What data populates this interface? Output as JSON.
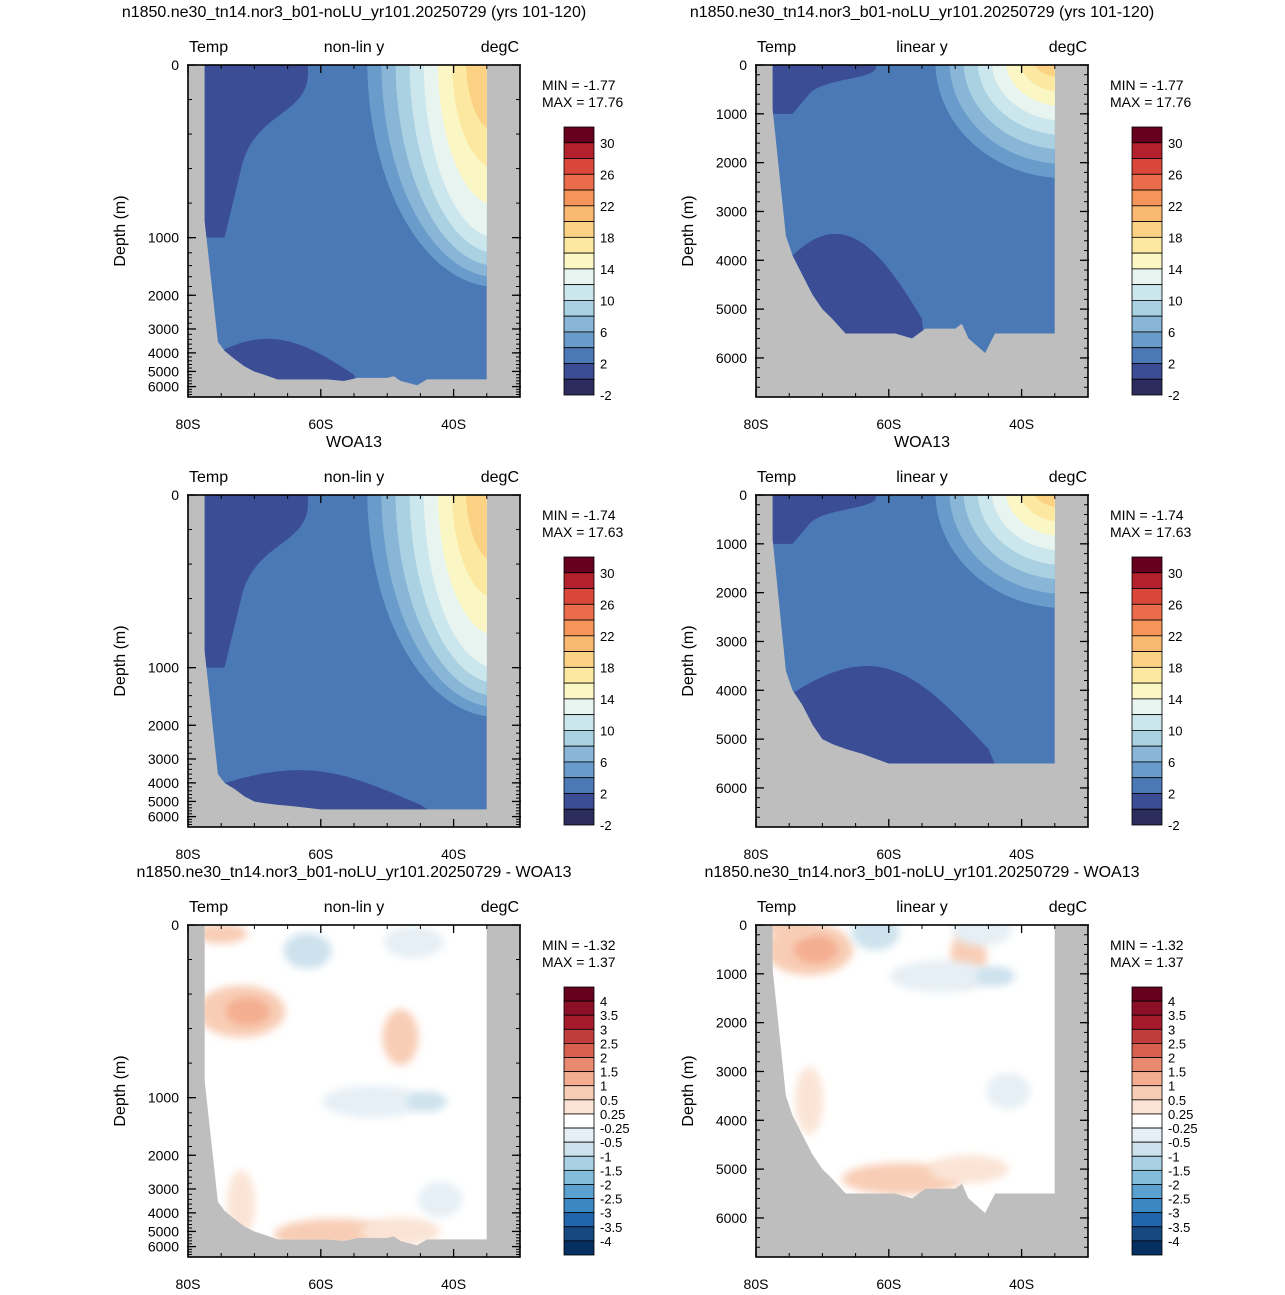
{
  "chart_data": [
    {
      "type": "heatmap",
      "title": "n1850.ne30_tn14.nor3_b01-noLU_yr101.20250729 (yrs 101-120)",
      "left_label": "Temp",
      "center_label": "non-lin y",
      "right_label": "degC",
      "xlabel": "",
      "ylabel": "Depth (m)",
      "x_ticks": [
        "80S",
        "60S",
        "40S"
      ],
      "y_ticks": [
        "0",
        "1000",
        "2000",
        "3000",
        "4000",
        "5000",
        "6000"
      ],
      "y_scale": "non-linear",
      "ylim": [
        0,
        6800
      ],
      "stats": {
        "min_label": "MIN = ",
        "min": "-1.77",
        "max_label": "MAX = ",
        "max": "17.76"
      },
      "colorbar": {
        "labels": [
          "30",
          "26",
          "22",
          "18",
          "14",
          "10",
          "6",
          "2",
          "-2"
        ]
      }
    },
    {
      "type": "heatmap",
      "title": "n1850.ne30_tn14.nor3_b01-noLU_yr101.20250729 (yrs 101-120)",
      "left_label": "Temp",
      "center_label": "linear y",
      "right_label": "degC",
      "xlabel": "",
      "ylabel": "Depth (m)",
      "x_ticks": [
        "80S",
        "60S",
        "40S"
      ],
      "y_ticks": [
        "0",
        "1000",
        "2000",
        "3000",
        "4000",
        "5000",
        "6000"
      ],
      "y_scale": "linear",
      "ylim": [
        0,
        6800
      ],
      "stats": {
        "min_label": "MIN = ",
        "min": "-1.77",
        "max_label": "MAX = ",
        "max": "17.76"
      },
      "colorbar": {
        "labels": [
          "30",
          "26",
          "22",
          "18",
          "14",
          "10",
          "6",
          "2",
          "-2"
        ]
      }
    },
    {
      "type": "heatmap",
      "title": "WOA13",
      "left_label": "Temp",
      "center_label": "non-lin y",
      "right_label": "degC",
      "xlabel": "",
      "ylabel": "Depth (m)",
      "x_ticks": [
        "80S",
        "60S",
        "40S"
      ],
      "y_ticks": [
        "0",
        "1000",
        "2000",
        "3000",
        "4000",
        "5000",
        "6000"
      ],
      "y_scale": "non-linear",
      "ylim": [
        0,
        6800
      ],
      "stats": {
        "min_label": "MIN = ",
        "min": "-1.74",
        "max_label": "MAX = ",
        "max": "17.63"
      },
      "colorbar": {
        "labels": [
          "30",
          "26",
          "22",
          "18",
          "14",
          "10",
          "6",
          "2",
          "-2"
        ]
      }
    },
    {
      "type": "heatmap",
      "title": "WOA13",
      "left_label": "Temp",
      "center_label": "linear y",
      "right_label": "degC",
      "xlabel": "",
      "ylabel": "Depth (m)",
      "x_ticks": [
        "80S",
        "60S",
        "40S"
      ],
      "y_ticks": [
        "0",
        "1000",
        "2000",
        "3000",
        "4000",
        "5000",
        "6000"
      ],
      "y_scale": "linear",
      "ylim": [
        0,
        6800
      ],
      "stats": {
        "min_label": "MIN = ",
        "min": "-1.74",
        "max_label": "MAX = ",
        "max": "17.63"
      },
      "colorbar": {
        "labels": [
          "30",
          "26",
          "22",
          "18",
          "14",
          "10",
          "6",
          "2",
          "-2"
        ]
      }
    },
    {
      "type": "heatmap",
      "title": "n1850.ne30_tn14.nor3_b01-noLU_yr101.20250729 - WOA13",
      "left_label": "Temp",
      "center_label": "non-lin y",
      "right_label": "degC",
      "xlabel": "",
      "ylabel": "Depth (m)",
      "x_ticks": [
        "80S",
        "60S",
        "40S"
      ],
      "y_ticks": [
        "0",
        "1000",
        "2000",
        "3000",
        "4000",
        "5000",
        "6000"
      ],
      "y_scale": "non-linear",
      "ylim": [
        0,
        6800
      ],
      "stats": {
        "min_label": "MIN = ",
        "min": "-1.32",
        "max_label": "MAX = ",
        "max": "1.37"
      },
      "colorbar": {
        "labels": [
          "4",
          "3.5",
          "3",
          "2.5",
          "2",
          "1.5",
          "1",
          "0.5",
          "0.25",
          "-0.25",
          "-0.5",
          "-1",
          "-1.5",
          "-2",
          "-2.5",
          "-3",
          "-3.5",
          "-4"
        ]
      }
    },
    {
      "type": "heatmap",
      "title": "n1850.ne30_tn14.nor3_b01-noLU_yr101.20250729 - WOA13",
      "left_label": "Temp",
      "center_label": "linear y",
      "right_label": "degC",
      "xlabel": "",
      "ylabel": "Depth (m)",
      "x_ticks": [
        "80S",
        "60S",
        "40S"
      ],
      "y_ticks": [
        "0",
        "1000",
        "2000",
        "3000",
        "4000",
        "5000",
        "6000"
      ],
      "y_scale": "linear",
      "ylim": [
        0,
        6800
      ],
      "stats": {
        "min_label": "MIN = ",
        "min": "-1.32",
        "max_label": "MAX = ",
        "max": "1.37"
      },
      "colorbar": {
        "labels": [
          "4",
          "3.5",
          "3",
          "2.5",
          "2",
          "1.5",
          "1",
          "0.5",
          "0.25",
          "-0.25",
          "-0.5",
          "-1",
          "-1.5",
          "-2",
          "-2.5",
          "-3",
          "-3.5",
          "-4"
        ]
      }
    }
  ],
  "colors": {
    "land": "#bebebe",
    "temperature_scale": [
      "#2c2d5e",
      "#3a4d95",
      "#4a79b6",
      "#6a9ccb",
      "#89b6d7",
      "#aad1e2",
      "#cbe6ec",
      "#e8f4ef",
      "#fbf7c5",
      "#fde8a2",
      "#fbd284",
      "#f9b870",
      "#f59559",
      "#ea6c4b",
      "#d9473b",
      "#b4202b",
      "#67001f"
    ],
    "difference_scale": [
      "#053061",
      "#15497f",
      "#2166ac",
      "#3a87c1",
      "#5aa1cf",
      "#84bcdb",
      "#a9d0e4",
      "#cde2ed",
      "#e6eff5",
      "#ffffff",
      "#fbe4d6",
      "#f8cdb5",
      "#f4ad90",
      "#e98a70",
      "#d6604d",
      "#c03d3e",
      "#a51a2d",
      "#8b0f26",
      "#67001f"
    ]
  }
}
